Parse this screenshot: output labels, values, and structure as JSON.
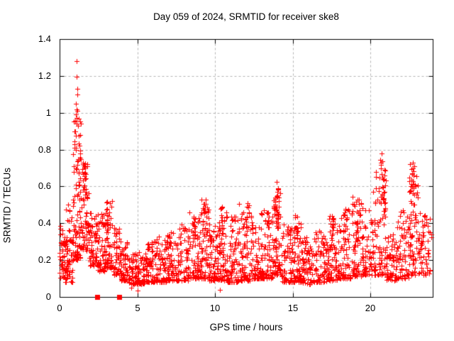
{
  "frame": {
    "bg": "#ffffff",
    "border_color": "#000000",
    "grid_color": "#b4b4b4",
    "text_color": "#000000"
  },
  "chart_data": {
    "type": "scatter",
    "title": "Day 059 of 2024, SRMTID for receiver ske8",
    "xlabel": "GPS time / hours",
    "ylabel": "SRMTID / TECUs",
    "xlim": [
      0,
      24
    ],
    "ylim": [
      0,
      1.4
    ],
    "xticks": [
      "0",
      "5",
      "10",
      "15",
      "20"
    ],
    "yticks": [
      "0",
      "0.2",
      "0.4",
      "0.6",
      "0.8",
      "1",
      "1.2",
      "1.4"
    ],
    "grid": true,
    "legend": null,
    "marker": {
      "shape": "plus",
      "color": "#ff0000",
      "size": 7
    },
    "square_marker": {
      "shape": "filled-square",
      "color": "#ff0000",
      "size": 7
    },
    "seed": 20240059,
    "point_bands": [
      [
        0.0,
        0.35,
        30,
        0.1,
        0.4,
        1.3
      ],
      [
        0.05,
        0.55,
        28,
        0.14,
        0.33,
        1.0
      ],
      [
        0.35,
        0.85,
        45,
        0.08,
        0.5,
        2.0
      ],
      [
        0.85,
        1.35,
        95,
        0.2,
        1.05,
        1.7
      ],
      [
        1.35,
        1.9,
        60,
        0.25,
        0.6,
        1.5
      ],
      [
        1.45,
        1.8,
        25,
        0.58,
        0.73,
        1.0
      ],
      [
        1.9,
        2.4,
        55,
        0.17,
        0.5,
        1.8
      ],
      [
        2.4,
        2.9,
        55,
        0.14,
        0.45,
        1.8
      ],
      [
        2.9,
        3.45,
        60,
        0.16,
        0.52,
        1.9
      ],
      [
        2.95,
        3.25,
        15,
        0.35,
        0.52,
        1.0
      ],
      [
        3.45,
        3.95,
        50,
        0.12,
        0.38,
        1.8
      ],
      [
        3.95,
        4.45,
        55,
        0.09,
        0.3,
        2.0
      ],
      [
        4.45,
        5.0,
        60,
        0.07,
        0.24,
        1.8
      ],
      [
        5.0,
        5.6,
        60,
        0.07,
        0.26,
        1.8
      ],
      [
        5.6,
        6.2,
        60,
        0.08,
        0.3,
        2.0
      ],
      [
        5.9,
        6.1,
        8,
        0.22,
        0.31,
        1.0
      ],
      [
        6.2,
        6.9,
        65,
        0.08,
        0.33,
        2.0
      ],
      [
        6.9,
        7.6,
        65,
        0.09,
        0.36,
        2.0
      ],
      [
        6.95,
        7.15,
        8,
        0.26,
        0.36,
        1.0
      ],
      [
        7.6,
        8.3,
        65,
        0.09,
        0.4,
        2.1
      ],
      [
        8.3,
        9.0,
        70,
        0.1,
        0.46,
        2.1
      ],
      [
        8.55,
        8.8,
        10,
        0.3,
        0.44,
        1.0
      ],
      [
        9.0,
        9.6,
        65,
        0.1,
        0.53,
        2.1
      ],
      [
        9.1,
        9.45,
        15,
        0.35,
        0.53,
        1.0
      ],
      [
        9.6,
        10.2,
        65,
        0.09,
        0.42,
        2.0
      ],
      [
        10.2,
        10.8,
        70,
        0.09,
        0.5,
        2.1
      ],
      [
        10.25,
        10.6,
        13,
        0.33,
        0.5,
        1.0
      ],
      [
        10.8,
        11.5,
        70,
        0.08,
        0.44,
        2.1
      ],
      [
        11.5,
        12.25,
        75,
        0.09,
        0.52,
        2.1
      ],
      [
        11.95,
        12.2,
        12,
        0.34,
        0.5,
        1.0
      ],
      [
        12.25,
        13.0,
        75,
        0.1,
        0.46,
        2.1
      ],
      [
        13.0,
        13.7,
        75,
        0.1,
        0.48,
        2.0
      ],
      [
        13.7,
        14.3,
        75,
        0.12,
        0.6,
        1.8
      ],
      [
        13.85,
        14.15,
        18,
        0.35,
        0.62,
        1.0
      ],
      [
        14.3,
        15.0,
        70,
        0.08,
        0.4,
        2.0
      ],
      [
        15.0,
        15.6,
        65,
        0.08,
        0.47,
        2.1
      ],
      [
        15.1,
        15.35,
        10,
        0.3,
        0.47,
        1.0
      ],
      [
        15.6,
        16.4,
        70,
        0.07,
        0.33,
        1.9
      ],
      [
        16.4,
        17.2,
        70,
        0.08,
        0.36,
        1.9
      ],
      [
        17.2,
        17.9,
        70,
        0.09,
        0.44,
        2.0
      ],
      [
        17.4,
        17.6,
        10,
        0.3,
        0.44,
        1.0
      ],
      [
        17.9,
        18.8,
        75,
        0.1,
        0.48,
        2.0
      ],
      [
        18.25,
        18.5,
        12,
        0.3,
        0.48,
        1.0
      ],
      [
        18.8,
        19.5,
        75,
        0.11,
        0.55,
        1.9
      ],
      [
        19.05,
        19.35,
        14,
        0.35,
        0.57,
        1.0
      ],
      [
        19.5,
        20.3,
        75,
        0.12,
        0.58,
        1.9
      ],
      [
        20.3,
        21.05,
        70,
        0.12,
        0.7,
        1.9
      ],
      [
        20.6,
        20.95,
        18,
        0.45,
        0.75,
        1.0
      ],
      [
        21.05,
        21.7,
        60,
        0.09,
        0.35,
        2.0
      ],
      [
        21.7,
        22.45,
        65,
        0.1,
        0.48,
        1.9
      ],
      [
        22.45,
        23.15,
        70,
        0.12,
        0.66,
        1.7
      ],
      [
        22.5,
        22.9,
        20,
        0.4,
        0.7,
        1.0
      ],
      [
        23.15,
        23.9,
        50,
        0.12,
        0.46,
        1.7
      ]
    ],
    "outlier_points": [
      [
        0.04,
        0.385
      ],
      [
        0.55,
        0.5
      ],
      [
        0.62,
        0.47
      ],
      [
        1.08,
        1.28
      ],
      [
        1.1,
        1.195
      ],
      [
        1.13,
        1.13
      ],
      [
        1.12,
        1.1
      ],
      [
        1.07,
        1.05
      ],
      [
        1.1,
        1.02
      ],
      [
        1.16,
        1.01
      ],
      [
        1.03,
        0.99
      ],
      [
        1.02,
        0.955
      ],
      [
        1.2,
        0.93
      ],
      [
        0.97,
        0.9
      ],
      [
        1.24,
        0.875
      ],
      [
        0.95,
        0.845
      ],
      [
        1.28,
        0.82
      ],
      [
        1.05,
        0.8
      ],
      [
        1.33,
        0.78
      ],
      [
        1.38,
        0.75
      ],
      [
        20.72,
        0.78
      ],
      [
        20.78,
        0.735
      ],
      [
        20.68,
        0.7
      ],
      [
        22.55,
        0.72
      ],
      [
        22.72,
        0.73
      ],
      [
        22.8,
        0.71
      ],
      [
        22.62,
        0.695
      ],
      [
        22.95,
        0.655
      ],
      [
        13.98,
        0.625
      ],
      [
        14.04,
        0.59
      ],
      [
        5.0,
        0.035
      ],
      [
        4.6,
        0.05
      ],
      [
        10.3,
        0.04
      ],
      [
        23.45,
        0.44
      ],
      [
        23.6,
        0.42
      ],
      [
        23.8,
        0.35
      ]
    ],
    "zero_square_points": [
      [
        2.44,
        0
      ],
      [
        3.81,
        0
      ]
    ]
  }
}
